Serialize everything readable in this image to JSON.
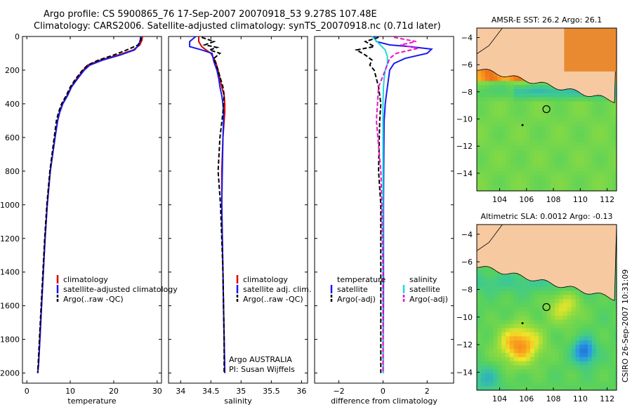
{
  "titles": {
    "line1": "Argo profile: CS 5900865_76 17-Sep-2007 20070918_53 9.278S 107.48E",
    "line2": "Climatology: CARS2006. Satellite-adjusted climatology: synTS_20070918.nc (0.71d later)"
  },
  "credit": "CSIRO 26-Sep-2007 10:31:09",
  "colors": {
    "red": "#dd0000",
    "blue": "#1a1aee",
    "black": "#000000",
    "cyan": "#22d8d8",
    "magenta": "#ee11cc",
    "land": "#f7c9a0"
  },
  "chart_data": [
    {
      "type": "line",
      "xlabel": "temperature",
      "ylabel": "",
      "xlim": [
        -1,
        31
      ],
      "ylim": [
        2060,
        0
      ],
      "xticks": [
        0,
        10,
        20,
        30
      ],
      "yticks": [
        0,
        200,
        400,
        600,
        800,
        1000,
        1200,
        1400,
        1600,
        1800,
        2000
      ],
      "legend": [
        "climatology",
        "satellite-adjusted climatology",
        "Argo(..raw -QC)"
      ],
      "series": [
        {
          "name": "climatology",
          "color": "red",
          "dash": false,
          "x": [
            26.6,
            26.5,
            26.0,
            24.5,
            21.0,
            17.0,
            14.0,
            13.0,
            11.5,
            10.2,
            9.3,
            8.2,
            7.5,
            7.1,
            6.5,
            5.4,
            4.7,
            4.2,
            3.8,
            3.4,
            3.0,
            2.7,
            2.5
          ],
          "y": [
            0,
            20,
            50,
            80,
            110,
            140,
            170,
            200,
            250,
            300,
            350,
            400,
            450,
            500,
            600,
            800,
            1000,
            1200,
            1400,
            1600,
            1800,
            1950,
            2000
          ]
        },
        {
          "name": "satellite-adjusted climatology",
          "color": "blue",
          "dash": false,
          "x": [
            26.2,
            26.1,
            25.8,
            24.8,
            21.5,
            17.5,
            14.5,
            13.2,
            11.7,
            10.3,
            9.4,
            8.3,
            7.6,
            7.1,
            6.5,
            5.4,
            4.7,
            4.2,
            3.8,
            3.4,
            3.0,
            2.7,
            2.5
          ],
          "y": [
            0,
            20,
            50,
            80,
            110,
            140,
            170,
            200,
            250,
            300,
            350,
            400,
            450,
            500,
            600,
            800,
            1000,
            1200,
            1400,
            1600,
            1800,
            1950,
            2000
          ]
        },
        {
          "name": "Argo(..raw -QC)",
          "color": "black",
          "dash": true,
          "x": [
            26.3,
            26.3,
            25.6,
            23.0,
            20.0,
            16.5,
            14.0,
            12.8,
            11.3,
            10.0,
            9.1,
            8.0,
            7.3,
            6.8,
            6.3,
            5.3,
            4.6,
            4.1,
            3.7,
            3.3,
            2.9,
            2.6,
            2.5
          ],
          "y": [
            5,
            20,
            50,
            80,
            110,
            140,
            170,
            200,
            250,
            300,
            350,
            400,
            450,
            500,
            600,
            800,
            1000,
            1200,
            1400,
            1600,
            1800,
            1950,
            2000
          ]
        }
      ]
    },
    {
      "type": "line",
      "xlabel": "salinity",
      "xlim": [
        33.8,
        36.1
      ],
      "ylim": [
        2060,
        0
      ],
      "xticks": [
        34,
        34.5,
        35,
        35.5,
        36
      ],
      "xticklabels": [
        "34",
        "34.5",
        "35",
        "35.5",
        "36"
      ],
      "legend": [
        "climatology",
        "satellite adj. clim.",
        "Argo(..raw -QC)"
      ],
      "annotation": [
        "Argo AUSTRALIA",
        "PI: Susan Wijffels"
      ],
      "series": [
        {
          "name": "climatology",
          "color": "red",
          "dash": false,
          "x": [
            34.3,
            34.3,
            34.35,
            34.42,
            34.5,
            34.58,
            34.62,
            34.65,
            34.68,
            34.72,
            34.73,
            34.73,
            34.72,
            34.7,
            34.68,
            34.68,
            34.69,
            34.7,
            34.71,
            34.72,
            34.73
          ],
          "y": [
            0,
            30,
            60,
            80,
            100,
            150,
            200,
            250,
            300,
            350,
            400,
            450,
            500,
            600,
            800,
            1000,
            1200,
            1400,
            1600,
            1800,
            2000
          ]
        },
        {
          "name": "satellite adj. clim.",
          "color": "blue",
          "dash": false,
          "x": [
            34.25,
            34.15,
            34.15,
            34.35,
            34.52,
            34.55,
            34.6,
            34.63,
            34.65,
            34.68,
            34.7,
            34.71,
            34.71,
            34.7,
            34.69,
            34.68,
            34.69,
            34.7,
            34.71,
            34.72,
            34.73
          ],
          "y": [
            0,
            30,
            60,
            80,
            100,
            150,
            200,
            250,
            300,
            350,
            400,
            450,
            500,
            600,
            800,
            1000,
            1200,
            1400,
            1600,
            1800,
            2000
          ]
        },
        {
          "name": "Argo(..raw -QC)",
          "color": "black",
          "dash": true,
          "x": [
            34.35,
            34.55,
            34.4,
            34.6,
            34.48,
            34.65,
            34.55,
            34.62,
            34.66,
            34.7,
            34.72,
            34.71,
            34.7,
            34.65,
            34.62,
            34.66,
            34.68,
            34.7,
            34.71,
            34.72,
            34.72
          ],
          "y": [
            5,
            30,
            50,
            65,
            80,
            100,
            130,
            200,
            250,
            300,
            350,
            400,
            450,
            600,
            800,
            1000,
            1200,
            1400,
            1600,
            1800,
            2000
          ]
        }
      ]
    },
    {
      "type": "line",
      "xlabel": "difference from climatology",
      "xlim": [
        -3.1,
        3.2
      ],
      "ylim": [
        2060,
        0
      ],
      "xticks": [
        -2,
        0,
        2
      ],
      "legend_left_title": "temperature",
      "legend_right_title": "salinity",
      "legend_left": [
        "satellite",
        "Argo(-adj)"
      ],
      "legend_right": [
        "satellite",
        "Argo(-adj)"
      ],
      "series": [
        {
          "name": "temperature satellite",
          "color": "blue",
          "dash": false,
          "x": [
            -0.4,
            -0.3,
            0.3,
            1.2,
            2.2,
            2.0,
            1.0,
            0.5,
            0.3,
            0.25,
            0.2,
            0.15,
            0.1,
            0.08,
            0.05,
            0.03,
            0.02,
            0.02,
            0.02,
            0.01,
            0.01
          ],
          "y": [
            0,
            30,
            50,
            60,
            75,
            100,
            130,
            160,
            200,
            250,
            300,
            350,
            400,
            450,
            500,
            800,
            1000,
            1400,
            1600,
            1800,
            2000
          ]
        },
        {
          "name": "temperature Argo(-adj)",
          "color": "black",
          "dash": true,
          "x": [
            -0.2,
            -0.8,
            -0.4,
            -1.2,
            -0.8,
            -0.5,
            -0.6,
            -0.4,
            -0.3,
            -0.2,
            -0.1,
            -0.15,
            -0.2,
            -0.1,
            -0.1,
            -0.1,
            -0.1
          ],
          "y": [
            5,
            30,
            60,
            80,
            110,
            140,
            170,
            200,
            250,
            300,
            400,
            500,
            800,
            1000,
            1200,
            1600,
            2000
          ]
        },
        {
          "name": "salinity satellite",
          "color": "cyan",
          "dash": false,
          "x": [
            -0.5,
            -0.2,
            0.1,
            0.2,
            0.2,
            0.1,
            0.05,
            0.02,
            0.0,
            0.0,
            0.0,
            0.0,
            0.0,
            0.0
          ],
          "y": [
            0,
            40,
            80,
            120,
            160,
            200,
            250,
            300,
            400,
            600,
            800,
            1200,
            1600,
            2000
          ]
        },
        {
          "name": "salinity Argo(-adj)",
          "color": "magenta",
          "dash": true,
          "x": [
            0.5,
            1.5,
            0.8,
            1.6,
            0.6,
            0.3,
            0.1,
            -0.2,
            -0.3,
            -0.1,
            -0.05,
            0.0,
            0.0
          ],
          "y": [
            5,
            30,
            50,
            70,
            100,
            130,
            200,
            300,
            500,
            800,
            1000,
            1400,
            2000
          ]
        }
      ]
    },
    {
      "type": "heatmap",
      "title": "AMSR-E SST: 26.2 Argo: 26.1",
      "xlim": [
        102.3,
        112.7
      ],
      "ylim": [
        -15.3,
        -3.3
      ],
      "xticks": [
        104,
        106,
        108,
        110,
        112
      ],
      "yticks": [
        -4,
        -6,
        -8,
        -10,
        -12,
        -14
      ],
      "argo_position": {
        "lon": 107.48,
        "lat": -9.278
      }
    },
    {
      "type": "heatmap",
      "title": "Altimetric SLA: 0.0012 Argo: -0.13",
      "xlim": [
        102.3,
        112.7
      ],
      "ylim": [
        -15.3,
        -3.3
      ],
      "xticks": [
        104,
        106,
        108,
        110,
        112
      ],
      "yticks": [
        -4,
        -6,
        -8,
        -10,
        -12,
        -14
      ],
      "argo_position": {
        "lon": 107.48,
        "lat": -9.278
      }
    }
  ]
}
